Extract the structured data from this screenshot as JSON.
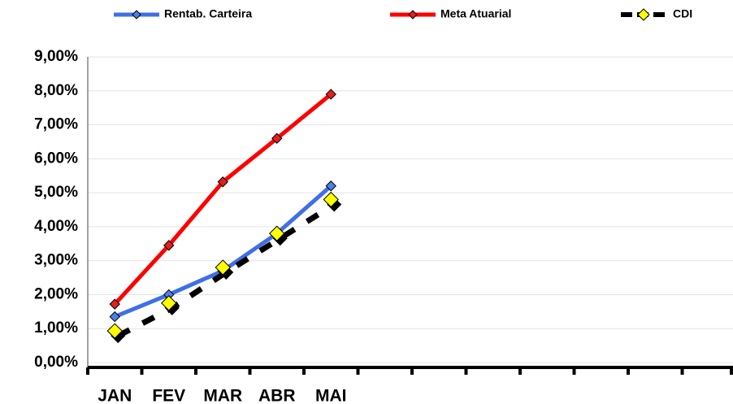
{
  "chart_data": {
    "type": "line",
    "categories": [
      "JAN",
      "FEV",
      "MAR",
      "ABR",
      "MAI",
      null,
      null,
      null,
      null,
      null,
      null,
      null
    ],
    "series": [
      {
        "name": "Rentab. Carteira",
        "color": "#3f6fe8",
        "marker_color": "#4f7fe8",
        "values": [
          1.35,
          2.0,
          2.7,
          3.8,
          5.2,
          null,
          null,
          null,
          null,
          null,
          null,
          null
        ]
      },
      {
        "name": "Meta Atuarial",
        "color": "#ff0000",
        "marker_color": "#e02020",
        "values": [
          1.72,
          3.45,
          5.32,
          6.6,
          7.9,
          null,
          null,
          null,
          null,
          null,
          null,
          null
        ]
      },
      {
        "name": "CDI",
        "color": "#000000",
        "marker_color": "#ffff00",
        "dashed": true,
        "values": [
          0.93,
          1.75,
          2.8,
          3.8,
          4.8,
          null,
          null,
          null,
          null,
          null,
          null,
          null
        ]
      }
    ],
    "ylim": [
      0,
      9
    ],
    "yticks": [
      {
        "value": 0,
        "label": "0,00%"
      },
      {
        "value": 1,
        "label": "1,00%"
      },
      {
        "value": 2,
        "label": "2,00%"
      },
      {
        "value": 3,
        "label": "3,00%"
      },
      {
        "value": 4,
        "label": "4,00%"
      },
      {
        "value": 5,
        "label": "5,00%"
      },
      {
        "value": 6,
        "label": "6,00%"
      },
      {
        "value": 7,
        "label": "7,00%"
      },
      {
        "value": 8,
        "label": "8,00%"
      },
      {
        "value": 9,
        "label": "9,00%"
      }
    ],
    "grid": true,
    "legend": "top"
  }
}
